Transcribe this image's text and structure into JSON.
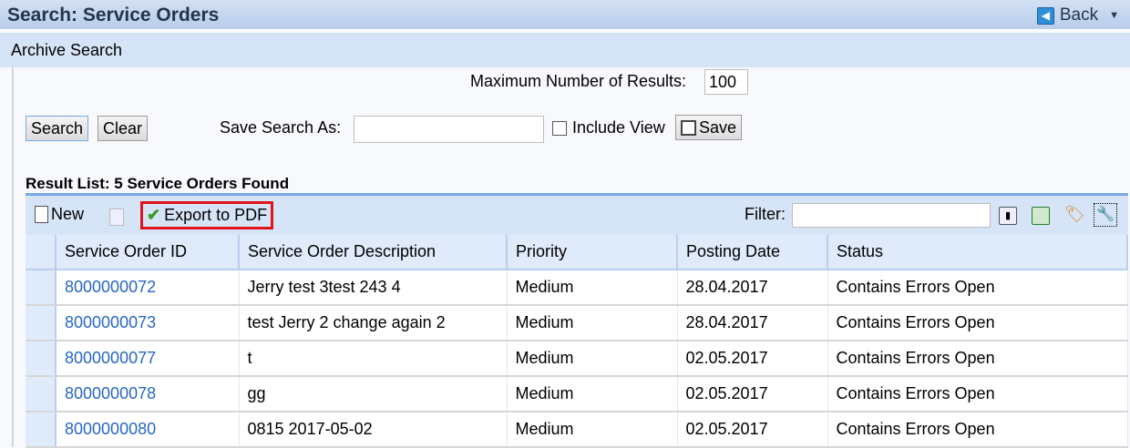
{
  "header": {
    "title": "Search: Service Orders",
    "back_label": "Back"
  },
  "subheader": {
    "title": "Archive Search"
  },
  "form": {
    "max_results_label": "Maximum Number of Results:",
    "max_results_value": "100",
    "search_label": "Search",
    "clear_label": "Clear",
    "save_search_as_label": "Save Search As:",
    "save_search_as_value": "",
    "include_view_label": "Include View",
    "include_view_checked": false,
    "save_label": "Save"
  },
  "results": {
    "title": "Result List: 5 Service Orders Found",
    "toolbar": {
      "new_label": "New",
      "export_label": "Export to PDF",
      "filter_label": "Filter:",
      "filter_value": ""
    },
    "columns": [
      "Service Order ID",
      "Service Order Description",
      "Priority",
      "Posting Date",
      "Status"
    ],
    "rows": [
      [
        "8000000072",
        "Jerry test 3test 243 4",
        "Medium",
        "28.04.2017",
        "Contains Errors Open"
      ],
      [
        "8000000073",
        "test Jerry 2 change again 2",
        "Medium",
        "28.04.2017",
        "Contains Errors Open"
      ],
      [
        "8000000077",
        "t",
        "Medium",
        "02.05.2017",
        "Contains Errors Open"
      ],
      [
        "8000000078",
        "gg",
        "Medium",
        "02.05.2017",
        "Contains Errors Open"
      ],
      [
        "8000000080",
        "0815 2017-05-02",
        "Medium",
        "02.05.2017",
        "Contains Errors Open"
      ]
    ]
  }
}
